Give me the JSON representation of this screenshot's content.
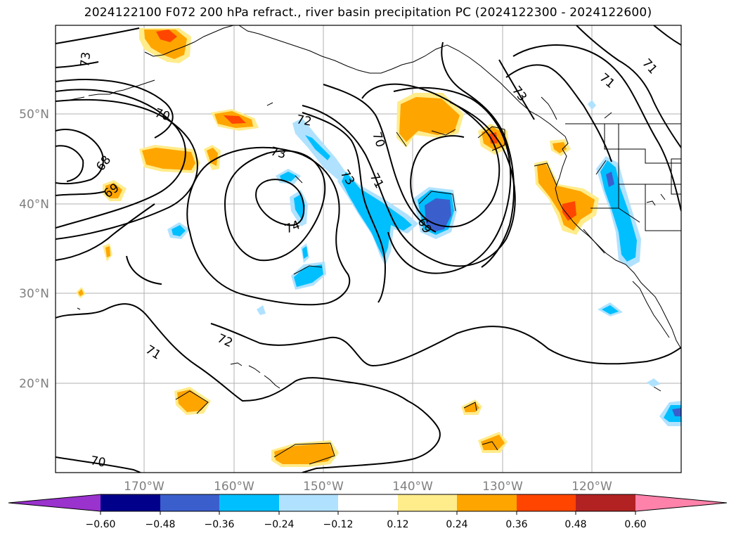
{
  "title": "2024122100 F072 200 hPa refract., river basin precipitation PC (2024122300 - 2024122600)",
  "map": {
    "longitude_labels": [
      "170°W",
      "160°W",
      "150°W",
      "140°W",
      "130°W",
      "120°W"
    ],
    "latitude_labels": [
      "50°N",
      "40°N",
      "30°N",
      "20°N"
    ],
    "contour_labels": [
      "73",
      "70",
      "68",
      "69",
      "72",
      "73",
      "74",
      "73",
      "70",
      "71",
      "69",
      "72",
      "71",
      "70",
      "71",
      "71",
      "73"
    ],
    "colors": {
      "coast": "#000000",
      "contour": "#000000",
      "grid": "#b0b0b0"
    }
  },
  "colorbar": {
    "colors": [
      "#9a32cd",
      "#00008b",
      "#3a5fcd",
      "#00bfff",
      "#b0e2ff",
      "#ffffff",
      "#ffec8b",
      "#ffa500",
      "#ff4500",
      "#b22222",
      "#ff82ab"
    ],
    "tick_labels": [
      "−0.60",
      "−0.48",
      "−0.36",
      "−0.24",
      "−0.12",
      "0.12",
      "0.24",
      "0.36",
      "0.48",
      "0.60"
    ]
  }
}
